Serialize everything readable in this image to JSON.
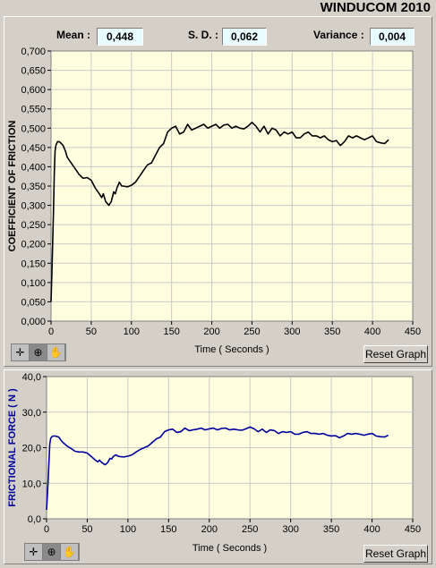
{
  "app": {
    "title": "WINDUCOM 2010"
  },
  "stats": {
    "mean_label": "Mean :",
    "mean_value": "0,448",
    "sd_label": "S. D. :",
    "sd_value": "0,062",
    "variance_label": "Variance :",
    "variance_value": "0,004"
  },
  "colors": {
    "plot_background": "#ffffe0",
    "grid": "#c8c8c8",
    "cof_line": "#000000",
    "force_line": "#0000a0",
    "force_axis_label": "#0000a0"
  },
  "toolbar": {
    "tools": [
      {
        "name": "cursor-tool",
        "glyph": "✛"
      },
      {
        "name": "zoom-tool",
        "glyph": "⊕"
      },
      {
        "name": "pan-tool",
        "glyph": "✋"
      }
    ],
    "reset_label": "Reset Graph"
  },
  "chart_data": [
    {
      "type": "line",
      "ylabel": "COEFFICIENT OF FRICTION",
      "xlabel": "Time ( Seconds )",
      "xlim": [
        0,
        450
      ],
      "ylim": [
        0,
        0.7
      ],
      "x_ticks": [
        "0",
        "50",
        "100",
        "150",
        "200",
        "250",
        "300",
        "350",
        "400",
        "450"
      ],
      "y_ticks": [
        "0,000",
        "0,050",
        "0,100",
        "0,150",
        "0,200",
        "0,250",
        "0,300",
        "0,350",
        "0,400",
        "0,450",
        "0,500",
        "0,550",
        "0,600",
        "0,650",
        "0,700"
      ],
      "grid": true,
      "series": [
        {
          "x": [
            0,
            1,
            2,
            3,
            4,
            5,
            6,
            8,
            10,
            12,
            15,
            18,
            20,
            25,
            30,
            35,
            40,
            45,
            50,
            55,
            60,
            63,
            65,
            68,
            70,
            72,
            75,
            78,
            80,
            82,
            85,
            88,
            90,
            95,
            100,
            105,
            110,
            115,
            120,
            125,
            130,
            135,
            140,
            145,
            150,
            155,
            160,
            165,
            170,
            175,
            180,
            185,
            190,
            195,
            200,
            205,
            210,
            215,
            220,
            225,
            230,
            235,
            240,
            245,
            250,
            255,
            260,
            265,
            270,
            275,
            280,
            285,
            290,
            295,
            300,
            305,
            310,
            315,
            320,
            325,
            330,
            335,
            340,
            345,
            350,
            355,
            360,
            365,
            370,
            375,
            380,
            385,
            390,
            395,
            400,
            405,
            410,
            415,
            420
          ],
          "y": [
            0.05,
            0.12,
            0.2,
            0.28,
            0.38,
            0.44,
            0.455,
            0.465,
            0.465,
            0.462,
            0.455,
            0.44,
            0.425,
            0.41,
            0.395,
            0.38,
            0.37,
            0.372,
            0.365,
            0.345,
            0.33,
            0.32,
            0.33,
            0.31,
            0.305,
            0.3,
            0.31,
            0.335,
            0.33,
            0.345,
            0.36,
            0.35,
            0.35,
            0.348,
            0.352,
            0.36,
            0.375,
            0.39,
            0.405,
            0.41,
            0.43,
            0.45,
            0.46,
            0.49,
            0.5,
            0.505,
            0.485,
            0.49,
            0.51,
            0.495,
            0.5,
            0.505,
            0.51,
            0.5,
            0.505,
            0.51,
            0.5,
            0.508,
            0.51,
            0.5,
            0.505,
            0.5,
            0.498,
            0.505,
            0.515,
            0.505,
            0.49,
            0.505,
            0.485,
            0.5,
            0.495,
            0.48,
            0.49,
            0.485,
            0.49,
            0.475,
            0.475,
            0.485,
            0.49,
            0.48,
            0.48,
            0.475,
            0.48,
            0.47,
            0.465,
            0.468,
            0.455,
            0.465,
            0.48,
            0.475,
            0.48,
            0.475,
            0.47,
            0.475,
            0.48,
            0.465,
            0.462,
            0.46,
            0.47
          ]
        }
      ]
    },
    {
      "type": "line",
      "ylabel": "FRICTIONAL FORCE ( N )",
      "xlabel": "Time ( Seconds )",
      "xlim": [
        0,
        450
      ],
      "ylim": [
        0,
        40
      ],
      "x_ticks": [
        "0",
        "50",
        "100",
        "150",
        "200",
        "250",
        "300",
        "350",
        "400",
        "450"
      ],
      "y_ticks": [
        "0,0",
        "10,0",
        "20,0",
        "30,0",
        "40,0"
      ],
      "grid": true,
      "series": [
        {
          "x": [
            0,
            1,
            2,
            3,
            4,
            5,
            6,
            8,
            10,
            12,
            15,
            18,
            20,
            25,
            30,
            35,
            40,
            45,
            50,
            55,
            60,
            63,
            65,
            68,
            70,
            72,
            75,
            78,
            80,
            82,
            85,
            88,
            90,
            95,
            100,
            105,
            110,
            115,
            120,
            125,
            130,
            135,
            140,
            145,
            150,
            155,
            160,
            165,
            170,
            175,
            180,
            185,
            190,
            195,
            200,
            205,
            210,
            215,
            220,
            225,
            230,
            235,
            240,
            245,
            250,
            255,
            260,
            265,
            270,
            275,
            280,
            285,
            290,
            295,
            300,
            305,
            310,
            315,
            320,
            325,
            330,
            335,
            340,
            345,
            350,
            355,
            360,
            365,
            370,
            375,
            380,
            385,
            390,
            395,
            400,
            405,
            410,
            415,
            420
          ],
          "y": [
            2.5,
            6.5,
            11,
            16,
            21,
            22.5,
            23,
            23.3,
            23.3,
            23.2,
            23,
            22,
            21.5,
            20.5,
            19.8,
            19,
            18.8,
            18.8,
            18.5,
            17.5,
            16.5,
            16,
            16.5,
            15.8,
            15.5,
            15.2,
            15.8,
            17,
            16.8,
            17.5,
            18,
            17.6,
            17.5,
            17.4,
            17.6,
            18,
            18.8,
            19.5,
            20,
            20.5,
            21.5,
            22.5,
            23,
            24.5,
            25,
            25.2,
            24.3,
            24.5,
            25.5,
            24.8,
            25,
            25.2,
            25.5,
            25,
            25.3,
            25.5,
            25,
            25.4,
            25.5,
            25,
            25.2,
            25,
            24.9,
            25.3,
            25.8,
            25.3,
            24.5,
            25.2,
            24.3,
            25,
            24.8,
            24,
            24.5,
            24.3,
            24.5,
            23.8,
            23.8,
            24.3,
            24.5,
            24,
            24,
            23.8,
            24,
            23.5,
            23.3,
            23.4,
            22.8,
            23.3,
            24,
            23.8,
            24,
            23.8,
            23.5,
            23.8,
            24,
            23.3,
            23.1,
            23,
            23.5
          ]
        }
      ]
    }
  ]
}
